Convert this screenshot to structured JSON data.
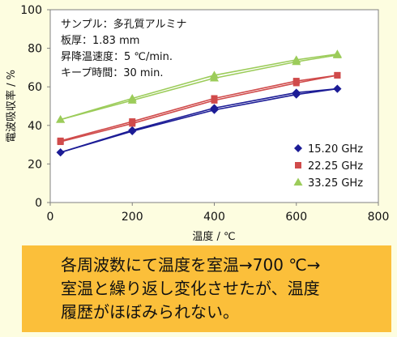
{
  "chart_data": {
    "type": "line",
    "xlabel": "温度 / ℃",
    "ylabel": "電波吸収率 / %",
    "xlim": [
      0,
      800
    ],
    "ylim": [
      0,
      100
    ],
    "xticks": [
      "0",
      "200",
      "400",
      "600",
      "800"
    ],
    "yticks": [
      "0",
      "20",
      "40",
      "60",
      "80",
      "100"
    ],
    "grid": false,
    "legend_position": "bottom-right",
    "conditions": [
      "サンプル：多孔質アルミナ",
      "板厚：1.83 mm",
      "昇降温速度：5 ℃/min.",
      "キープ時間：30 min."
    ],
    "series": [
      {
        "name": "15.20 GHz",
        "color": "#1c1c96",
        "marker": "diamond",
        "heating": {
          "x": [
            25,
            200,
            400,
            600,
            700
          ],
          "y": [
            26,
            37,
            48,
            56,
            59
          ]
        },
        "cooling": {
          "x": [
            700,
            600,
            400,
            200,
            25
          ],
          "y": [
            59,
            57,
            49,
            37.5,
            26
          ]
        }
      },
      {
        "name": "22.25 GHz",
        "color": "#d04b4b",
        "marker": "square",
        "heating": {
          "x": [
            25,
            200,
            400,
            600,
            700
          ],
          "y": [
            32,
            42,
            54,
            63,
            66
          ]
        },
        "cooling": {
          "x": [
            700,
            600,
            400,
            200,
            25
          ],
          "y": [
            66,
            62,
            53,
            41,
            31.5
          ]
        }
      },
      {
        "name": "33.25 GHz",
        "color": "#9ccc5a",
        "marker": "triangle",
        "heating": {
          "x": [
            25,
            200,
            400,
            600,
            700
          ],
          "y": [
            43,
            54,
            66,
            74,
            77
          ]
        },
        "cooling": {
          "x": [
            700,
            600,
            400,
            200,
            25
          ],
          "y": [
            76.5,
            73,
            64.5,
            53,
            43
          ]
        }
      }
    ]
  },
  "caption": {
    "line1": "各周波数にて温度を室温→700 ℃→",
    "line2": "室温と繰り返し変化させたが、温度",
    "line3": "履歴がほぼみられない。"
  }
}
